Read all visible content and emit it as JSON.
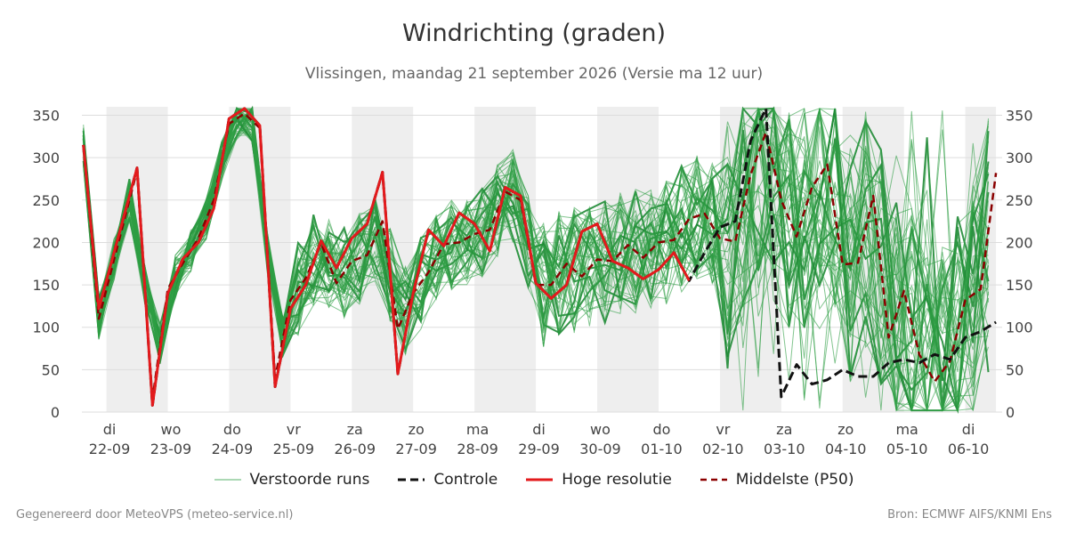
{
  "header": {
    "title": "Windrichting (graden)",
    "subtitle": "Vlissingen, maandag 21 september 2026 (Versie ma 12 uur)"
  },
  "footer": {
    "left": "Gegenereerd door MeteoVPS (meteo-service.nl)",
    "right": "Bron: ECMWF AIFS/KNMI Ens"
  },
  "colors": {
    "ensemble": "#2e9e44",
    "ensemble_bold": "#1f8a35",
    "control": "#111111",
    "high_res": "#e31a1c",
    "median": "#8b0000",
    "night_band": "#eeeeee",
    "grid": "#dddddd"
  },
  "chart_data": {
    "type": "line",
    "title": "Windrichting (graden)",
    "subtitle": "Vlissingen, maandag 21 september 2026 (Versie ma 12 uur)",
    "ylim": [
      0,
      360
    ],
    "yticks": [
      0,
      50,
      100,
      150,
      200,
      250,
      300,
      350
    ],
    "x_unit": "days",
    "xlim": [
      21.6,
      36.0
    ],
    "xticks": [
      {
        "day": 22,
        "dow": "di",
        "date": "22-09"
      },
      {
        "day": 23,
        "dow": "wo",
        "date": "23-09"
      },
      {
        "day": 24,
        "dow": "do",
        "date": "24-09"
      },
      {
        "day": 25,
        "dow": "vr",
        "date": "25-09"
      },
      {
        "day": 26,
        "dow": "za",
        "date": "26-09"
      },
      {
        "day": 27,
        "dow": "zo",
        "date": "27-09"
      },
      {
        "day": 28,
        "dow": "ma",
        "date": "28-09"
      },
      {
        "day": 29,
        "dow": "di",
        "date": "29-09"
      },
      {
        "day": 30,
        "dow": "wo",
        "date": "30-09"
      },
      {
        "day": 31,
        "dow": "do",
        "date": "01-10"
      },
      {
        "day": 32,
        "dow": "vr",
        "date": "02-10"
      },
      {
        "day": 33,
        "dow": "za",
        "date": "03-10"
      },
      {
        "day": 34,
        "dow": "zo",
        "date": "04-10"
      },
      {
        "day": 35,
        "dow": "ma",
        "date": "05-10"
      },
      {
        "day": 36,
        "dow": "di",
        "date": "06-10"
      }
    ],
    "night_bands": [
      [
        22.0,
        23.0
      ],
      [
        24.0,
        25.0
      ],
      [
        26.0,
        27.0
      ],
      [
        28.0,
        29.0
      ],
      [
        30.0,
        31.0
      ],
      [
        32.0,
        33.0
      ],
      [
        34.0,
        35.0
      ],
      [
        36.0,
        36.5
      ]
    ],
    "legend": [
      "Verstoorde runs",
      "Controle",
      "Hoge resolutie",
      "Middelste (P50)"
    ],
    "series": [
      {
        "name": "Hoge resolutie",
        "style": "high_res",
        "x": [
          21.625,
          21.875,
          22.5,
          22.75,
          23.0,
          23.25,
          23.5,
          23.75,
          24.0,
          24.25,
          24.5,
          24.75,
          25.0,
          25.25,
          25.5,
          25.75,
          26.0,
          26.25,
          26.5,
          26.75,
          27.0,
          27.25,
          27.5,
          27.75,
          28.0,
          28.25,
          28.5,
          28.75,
          29.0,
          29.25,
          29.5,
          29.75,
          30.0,
          30.25,
          30.5,
          30.75,
          31.0,
          31.25,
          31.5
        ],
        "y": [
          315,
          122,
          288,
          8,
          140,
          181,
          200,
          240,
          346,
          358,
          338,
          30,
          122,
          150,
          202,
          170,
          205,
          222,
          283,
          45,
          140,
          215,
          196,
          235,
          222,
          190,
          265,
          255,
          152,
          134,
          150,
          213,
          222,
          178,
          170,
          157,
          168,
          188,
          155
        ]
      },
      {
        "name": "Controle",
        "style": "control",
        "x": [
          21.625,
          21.875,
          22.5,
          22.75,
          23.0,
          23.25,
          23.5,
          23.75,
          24.0,
          24.25,
          24.5,
          24.75,
          25.0,
          25.25,
          25.5,
          25.75,
          26.0,
          26.25,
          26.5,
          26.75,
          27.0,
          27.25,
          27.5,
          27.75,
          28.0,
          28.25,
          28.5,
          28.75,
          29.0,
          29.25,
          29.5,
          29.75,
          30.0,
          30.25,
          30.5,
          30.75,
          31.0,
          31.25,
          31.5,
          31.75,
          32.0,
          32.25,
          32.5,
          32.75,
          33.0,
          33.25,
          33.5,
          33.75,
          34.0,
          34.25,
          34.5,
          34.75,
          35.0,
          35.25,
          35.5,
          35.75,
          36.0,
          36.25,
          36.5
        ],
        "y": [
          315,
          122,
          288,
          8,
          140,
          181,
          200,
          240,
          346,
          358,
          338,
          30,
          122,
          150,
          202,
          170,
          205,
          222,
          283,
          45,
          140,
          215,
          196,
          235,
          222,
          190,
          265,
          255,
          152,
          134,
          150,
          213,
          222,
          178,
          170,
          157,
          168,
          188,
          155,
          188,
          218,
          225,
          320,
          358,
          18,
          56,
          33,
          38,
          50,
          42,
          42,
          58,
          62,
          58,
          68,
          62,
          88,
          95,
          106
        ]
      },
      {
        "name": "Middelste (P50)",
        "style": "median",
        "x": [
          21.625,
          21.875,
          22.5,
          22.75,
          23.0,
          23.25,
          23.5,
          23.75,
          24.0,
          24.25,
          24.5,
          24.75,
          25.0,
          25.25,
          25.5,
          25.75,
          26.0,
          26.25,
          26.5,
          26.75,
          27.0,
          27.25,
          27.5,
          27.75,
          28.0,
          28.25,
          28.5,
          28.75,
          29.0,
          29.25,
          29.5,
          29.75,
          30.0,
          30.25,
          30.5,
          30.75,
          31.0,
          31.25,
          31.5,
          31.75,
          32.0,
          32.25,
          32.5,
          32.75,
          33.0,
          33.25,
          33.5,
          33.75,
          34.0,
          34.25,
          34.5,
          34.75,
          35.0,
          35.25,
          35.5,
          35.75,
          36.0,
          36.25,
          36.5
        ],
        "y": [
          315,
          110,
          285,
          15,
          145,
          176,
          205,
          250,
          340,
          352,
          335,
          40,
          132,
          158,
          199,
          152,
          178,
          185,
          225,
          98,
          140,
          165,
          198,
          200,
          210,
          215,
          260,
          250,
          150,
          150,
          175,
          160,
          180,
          178,
          197,
          182,
          200,
          203,
          228,
          234,
          205,
          201,
          280,
          330,
          250,
          207,
          265,
          292,
          174,
          176,
          255,
          88,
          143,
          68,
          36,
          60,
          132,
          145,
          282
        ]
      }
    ]
  }
}
